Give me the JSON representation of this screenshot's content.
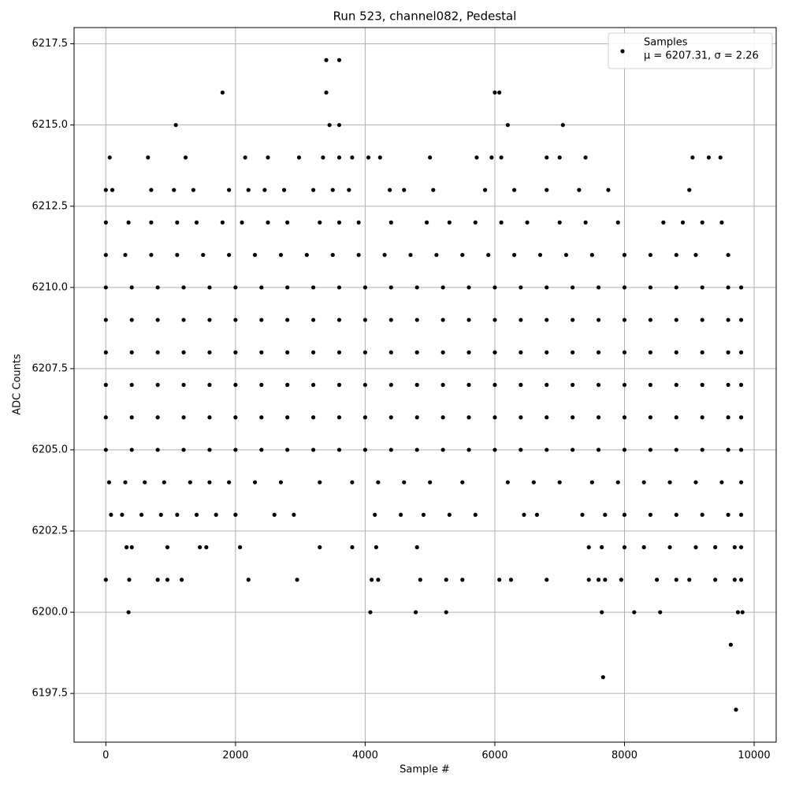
{
  "chart_data": {
    "type": "scatter",
    "title": "Run 523, channel082, Pedestal",
    "x_label": "Sample #",
    "y_label": "ADC Counts",
    "annotation": "μ = 6207.31, σ = 2.26",
    "legend": "upper right",
    "grid": true,
    "xlim": [
      -490,
      10340
    ],
    "ylim": [
      6196.0,
      6218.0
    ],
    "xticks": [
      0,
      2000,
      4000,
      6000,
      8000,
      10000
    ],
    "yticks": [
      6197.5,
      {
        "value": 6200,
        "label": "6200.0"
      },
      6202.5,
      {
        "value": 6205,
        "label": "6205.0"
      },
      6207.5,
      {
        "value": 6210,
        "label": "6210.0"
      },
      6212.5,
      {
        "value": 6215,
        "label": "6215.0"
      },
      6217.5
    ],
    "series": [
      {
        "name": "Samples",
        "color": "#000000",
        "x": [
          3400,
          3600,
          1800,
          3400,
          6000,
          6070,
          1080,
          3450,
          3600,
          6200,
          7050,
          60,
          650,
          1230,
          2150,
          2500,
          2980,
          3350,
          3600,
          3800,
          4050,
          4230,
          5000,
          5720,
          5950,
          6100,
          6800,
          7000,
          7400,
          9050,
          9300,
          9480,
          0,
          100,
          700,
          1050,
          1350,
          1900,
          2200,
          2450,
          2750,
          3200,
          3500,
          3750,
          4380,
          4600,
          5050,
          5850,
          6300,
          6800,
          7300,
          7750,
          9000,
          0,
          350,
          700,
          1100,
          1400,
          1800,
          2100,
          2500,
          2800,
          3300,
          3600,
          3900,
          4400,
          4950,
          5300,
          5700,
          6100,
          6500,
          7000,
          7400,
          7900,
          8600,
          8900,
          9200,
          9500,
          0,
          300,
          700,
          1100,
          1500,
          1900,
          2300,
          2700,
          3100,
          3500,
          3900,
          4300,
          4700,
          5100,
          5500,
          5900,
          6300,
          6700,
          7100,
          7500,
          8000,
          8400,
          8800,
          9100,
          9600,
          0,
          400,
          800,
          1200,
          1600,
          2000,
          2400,
          2800,
          3200,
          3600,
          4000,
          4400,
          4800,
          5200,
          5600,
          6000,
          6400,
          6800,
          7200,
          7600,
          8000,
          8400,
          8800,
          9200,
          9600,
          9800,
          0,
          400,
          800,
          1200,
          1600,
          2000,
          2400,
          2800,
          3200,
          3600,
          4000,
          4400,
          4800,
          5200,
          5600,
          6000,
          6400,
          6800,
          7200,
          7600,
          8000,
          8400,
          8800,
          9200,
          9600,
          9800,
          0,
          400,
          800,
          1200,
          1600,
          2000,
          2400,
          2800,
          3200,
          3600,
          4000,
          4400,
          4800,
          5200,
          5600,
          6000,
          6400,
          6800,
          7200,
          7600,
          8000,
          8400,
          8800,
          9200,
          9600,
          9800,
          0,
          400,
          800,
          1200,
          1600,
          2000,
          2400,
          2800,
          3200,
          3600,
          4000,
          4400,
          4800,
          5200,
          5600,
          6000,
          6400,
          6800,
          7200,
          7600,
          8000,
          8400,
          8800,
          9200,
          9600,
          9800,
          0,
          400,
          800,
          1200,
          1600,
          2000,
          2400,
          2800,
          3200,
          3600,
          4000,
          4400,
          4800,
          5200,
          5600,
          6000,
          6400,
          6800,
          7200,
          7600,
          8000,
          8400,
          8800,
          9200,
          9600,
          9800,
          0,
          400,
          800,
          1200,
          1600,
          2000,
          2400,
          2800,
          3200,
          3600,
          4000,
          4400,
          4800,
          5200,
          5600,
          6000,
          6400,
          6800,
          7200,
          7600,
          8000,
          8400,
          8800,
          9200,
          9600,
          9800,
          50,
          300,
          600,
          900,
          1300,
          1600,
          1900,
          2300,
          2700,
          3300,
          3800,
          4200,
          4600,
          5000,
          5500,
          6200,
          6600,
          7000,
          7500,
          7900,
          8300,
          8700,
          9100,
          9500,
          9800,
          80,
          250,
          550,
          850,
          1100,
          1400,
          1700,
          2000,
          2600,
          2900,
          4150,
          4550,
          4900,
          5300,
          5700,
          6450,
          6650,
          7350,
          7700,
          8000,
          8400,
          8800,
          9200,
          9600,
          9800,
          320,
          400,
          950,
          1450,
          1550,
          2070,
          3300,
          3800,
          4170,
          4800,
          7450,
          7650,
          8000,
          8300,
          8700,
          9100,
          9400,
          9700,
          9800,
          0,
          360,
          800,
          950,
          1170,
          2200,
          2950,
          4100,
          4200,
          4850,
          5250,
          5500,
          6070,
          6250,
          6800,
          7450,
          7600,
          7700,
          7950,
          8500,
          8800,
          9000,
          9400,
          9700,
          9800,
          350,
          4080,
          4780,
          5250,
          7650,
          8150,
          8550,
          9750,
          9820,
          9640,
          7670,
          9720
        ],
        "values": [
          6217,
          6217,
          6216,
          6216,
          6216,
          6216,
          6215,
          6215,
          6215,
          6215,
          6215,
          6214,
          6214,
          6214,
          6214,
          6214,
          6214,
          6214,
          6214,
          6214,
          6214,
          6214,
          6214,
          6214,
          6214,
          6214,
          6214,
          6214,
          6214,
          6214,
          6214,
          6214,
          6213,
          6213,
          6213,
          6213,
          6213,
          6213,
          6213,
          6213,
          6213,
          6213,
          6213,
          6213,
          6213,
          6213,
          6213,
          6213,
          6213,
          6213,
          6213,
          6213,
          6213,
          6212,
          6212,
          6212,
          6212,
          6212,
          6212,
          6212,
          6212,
          6212,
          6212,
          6212,
          6212,
          6212,
          6212,
          6212,
          6212,
          6212,
          6212,
          6212,
          6212,
          6212,
          6212,
          6212,
          6212,
          6212,
          6211,
          6211,
          6211,
          6211,
          6211,
          6211,
          6211,
          6211,
          6211,
          6211,
          6211,
          6211,
          6211,
          6211,
          6211,
          6211,
          6211,
          6211,
          6211,
          6211,
          6211,
          6211,
          6211,
          6211,
          6211,
          6210,
          6210,
          6210,
          6210,
          6210,
          6210,
          6210,
          6210,
          6210,
          6210,
          6210,
          6210,
          6210,
          6210,
          6210,
          6210,
          6210,
          6210,
          6210,
          6210,
          6210,
          6210,
          6210,
          6210,
          6210,
          6210,
          6209,
          6209,
          6209,
          6209,
          6209,
          6209,
          6209,
          6209,
          6209,
          6209,
          6209,
          6209,
          6209,
          6209,
          6209,
          6209,
          6209,
          6209,
          6209,
          6209,
          6209,
          6209,
          6209,
          6209,
          6209,
          6209,
          6208,
          6208,
          6208,
          6208,
          6208,
          6208,
          6208,
          6208,
          6208,
          6208,
          6208,
          6208,
          6208,
          6208,
          6208,
          6208,
          6208,
          6208,
          6208,
          6208,
          6208,
          6208,
          6208,
          6208,
          6208,
          6208,
          6207,
          6207,
          6207,
          6207,
          6207,
          6207,
          6207,
          6207,
          6207,
          6207,
          6207,
          6207,
          6207,
          6207,
          6207,
          6207,
          6207,
          6207,
          6207,
          6207,
          6207,
          6207,
          6207,
          6207,
          6207,
          6207,
          6206,
          6206,
          6206,
          6206,
          6206,
          6206,
          6206,
          6206,
          6206,
          6206,
          6206,
          6206,
          6206,
          6206,
          6206,
          6206,
          6206,
          6206,
          6206,
          6206,
          6206,
          6206,
          6206,
          6206,
          6206,
          6206,
          6205,
          6205,
          6205,
          6205,
          6205,
          6205,
          6205,
          6205,
          6205,
          6205,
          6205,
          6205,
          6205,
          6205,
          6205,
          6205,
          6205,
          6205,
          6205,
          6205,
          6205,
          6205,
          6205,
          6205,
          6205,
          6205,
          6204,
          6204,
          6204,
          6204,
          6204,
          6204,
          6204,
          6204,
          6204,
          6204,
          6204,
          6204,
          6204,
          6204,
          6204,
          6204,
          6204,
          6204,
          6204,
          6204,
          6204,
          6204,
          6204,
          6204,
          6204,
          6203,
          6203,
          6203,
          6203,
          6203,
          6203,
          6203,
          6203,
          6203,
          6203,
          6203,
          6203,
          6203,
          6203,
          6203,
          6203,
          6203,
          6203,
          6203,
          6203,
          6203,
          6203,
          6203,
          6203,
          6203,
          6202,
          6202,
          6202,
          6202,
          6202,
          6202,
          6202,
          6202,
          6202,
          6202,
          6202,
          6202,
          6202,
          6202,
          6202,
          6202,
          6202,
          6202,
          6202,
          6201,
          6201,
          6201,
          6201,
          6201,
          6201,
          6201,
          6201,
          6201,
          6201,
          6201,
          6201,
          6201,
          6201,
          6201,
          6201,
          6201,
          6201,
          6201,
          6201,
          6201,
          6201,
          6201,
          6201,
          6201,
          6200,
          6200,
          6200,
          6200,
          6200,
          6200,
          6200,
          6200,
          6200,
          6199,
          6198,
          6197
        ]
      }
    ]
  }
}
